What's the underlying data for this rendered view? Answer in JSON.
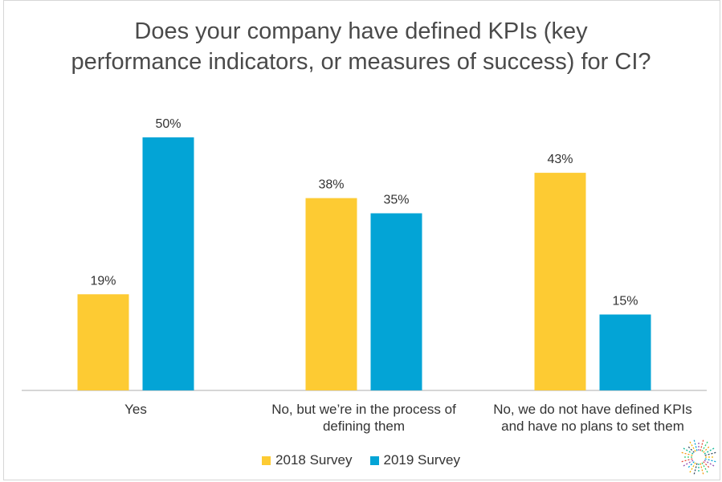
{
  "title_lines": [
    "Does your company have defined KPIs (key",
    "performance indicators, or measures of success) for CI?"
  ],
  "chart_data": {
    "type": "bar",
    "categories": [
      [
        "Yes"
      ],
      [
        "No, but we’re in the process of",
        "defining them"
      ],
      [
        "No, we do not have defined KPIs",
        "and have no plans to set them"
      ]
    ],
    "series": [
      {
        "name": "2018 Survey",
        "color": "#FDCB33",
        "values": [
          19,
          38,
          43
        ],
        "labels": [
          "19%",
          "38%",
          "43%"
        ]
      },
      {
        "name": "2019 Survey",
        "color": "#03A4D6",
        "values": [
          50,
          35,
          15
        ],
        "labels": [
          "50%",
          "35%",
          "15%"
        ]
      }
    ],
    "ylim": [
      0,
      50
    ],
    "grid": false,
    "legend_position": "bottom",
    "value_unit": "%"
  }
}
